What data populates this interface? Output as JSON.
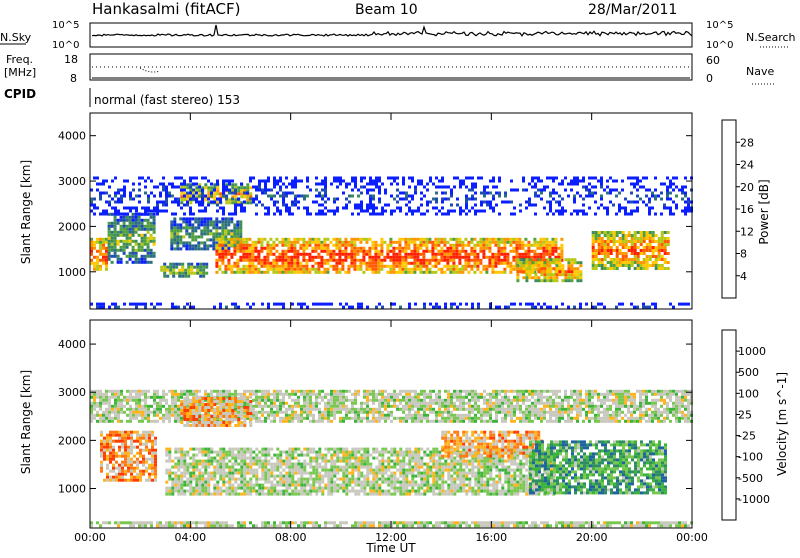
{
  "header": {
    "station": "Hankasalmi (fitACF)",
    "beam": "Beam 10",
    "date": "28/Mar/2011"
  },
  "noise_panel": {
    "left_label": "N.Sky",
    "right_label": "N.Search",
    "left_ticks": [
      "10^5",
      "10^0"
    ],
    "right_ticks": [
      "10^5",
      "10^0"
    ]
  },
  "freq_panel": {
    "left_label_top": "Freq.",
    "left_label_unit": "[MHz]",
    "right_label": "Nave",
    "left_ticks": [
      "18",
      "8"
    ],
    "right_ticks": [
      "60",
      "0"
    ]
  },
  "cpid": {
    "label": "CPID",
    "mode": "normal (fast stereo) 153"
  },
  "time_axis": {
    "label": "Time UT",
    "ticks": [
      "00:00",
      "04:00",
      "08:00",
      "12:00",
      "16:00",
      "20:00",
      "00:00"
    ]
  },
  "colors": {
    "power_scale": [
      "#0a1eff",
      "#1e4bb4",
      "#2d6e82",
      "#3c8c5a",
      "#50a03c",
      "#b4c814",
      "#ffc800",
      "#ff9600",
      "#ff5a00",
      "#ff1e00"
    ],
    "velocity_scale": [
      "#1e3cc8",
      "#1e64a0",
      "#2d8c64",
      "#3cb43c",
      "#78c850",
      "#c8c8be",
      "#c8c8be",
      "#ffb41e",
      "#ff7814",
      "#ff3c00",
      "#ff0000"
    ]
  },
  "chart_data": [
    {
      "type": "heatmap",
      "name": "power",
      "xlabel": "Time UT",
      "ylabel": "Slant Range [km]",
      "ylim": [
        180,
        4500
      ],
      "xlim": [
        0,
        24
      ],
      "yticks": [
        "1000",
        "2000",
        "3000",
        "4000"
      ],
      "colorbar_label": "Power [dB]",
      "colorbar_ticks": [
        "4",
        "8",
        "12",
        "16",
        "20",
        "24",
        "28"
      ],
      "bands": [
        {
          "t_start": 0.0,
          "t_end": 0.7,
          "r_lo": 1050,
          "r_hi": 1750,
          "level": 0.9
        },
        {
          "t_start": 0.7,
          "t_end": 2.5,
          "r_lo": 1200,
          "r_hi": 2300,
          "level": 0.5
        },
        {
          "t_start": 2.8,
          "t_end": 4.6,
          "r_lo": 900,
          "r_hi": 1200,
          "level": 0.55
        },
        {
          "t_start": 3.6,
          "t_end": 6.4,
          "r_lo": 2500,
          "r_hi": 2950,
          "level": 0.75
        },
        {
          "t_start": 3.2,
          "t_end": 6.0,
          "r_lo": 1500,
          "r_hi": 2200,
          "level": 0.45
        },
        {
          "t_start": 5.0,
          "t_end": 18.8,
          "r_lo": 1000,
          "r_hi": 1750,
          "level": 0.95
        },
        {
          "t_start": 17.0,
          "t_end": 19.6,
          "r_lo": 800,
          "r_hi": 1300,
          "level": 0.8
        },
        {
          "t_start": 20.0,
          "t_end": 23.0,
          "r_lo": 1100,
          "r_hi": 1900,
          "level": 0.85
        },
        {
          "t_start": 0.0,
          "t_end": 24.0,
          "r_lo": 2300,
          "r_hi": 3100,
          "level": 0.15
        },
        {
          "t_start": 0.0,
          "t_end": 24.0,
          "r_lo": 200,
          "r_hi": 320,
          "level": 0.1
        }
      ]
    },
    {
      "type": "heatmap",
      "name": "velocity",
      "xlabel": "Time UT",
      "ylabel": "Slant Range [km]",
      "ylim": [
        180,
        4500
      ],
      "xlim": [
        0,
        24
      ],
      "yticks": [
        "1000",
        "2000",
        "3000",
        "4000"
      ],
      "colorbar_label": "Velocity [m s^-1]",
      "colorbar_ticks": [
        "1000",
        "500",
        "100",
        "25",
        "-25",
        "-100",
        "-500",
        "-1000"
      ],
      "bands": [
        {
          "t_start": 0.0,
          "t_end": 24.0,
          "r_lo": 2400,
          "r_hi": 3050,
          "level": 0.5
        },
        {
          "t_start": 0.4,
          "t_end": 2.6,
          "r_lo": 1200,
          "r_hi": 2200,
          "level": 0.72
        },
        {
          "t_start": 3.6,
          "t_end": 6.4,
          "r_lo": 2300,
          "r_hi": 2900,
          "level": 0.7
        },
        {
          "t_start": 3.0,
          "t_end": 18.5,
          "r_lo": 900,
          "r_hi": 1850,
          "level": 0.5
        },
        {
          "t_start": 14.0,
          "t_end": 18.0,
          "r_lo": 1650,
          "r_hi": 2200,
          "level": 0.68
        },
        {
          "t_start": 17.5,
          "t_end": 23.0,
          "r_lo": 900,
          "r_hi": 2000,
          "level": 0.3
        },
        {
          "t_start": 0.0,
          "t_end": 24.0,
          "r_lo": 200,
          "r_hi": 320,
          "level": 0.5
        }
      ]
    }
  ]
}
